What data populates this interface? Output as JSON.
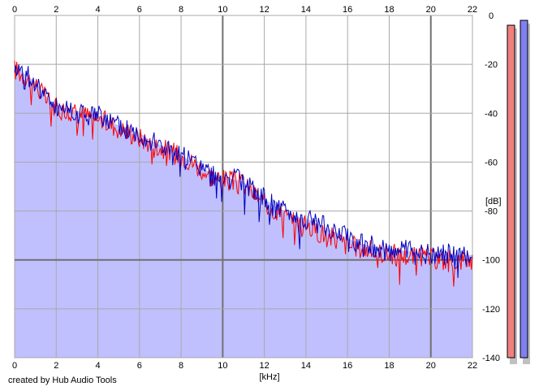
{
  "chart_data": {
    "type": "line",
    "credit": "created by Hub Audio Tools",
    "xlabel": "[kHz]",
    "ylabel": "[dB]",
    "xlim": [
      0,
      22
    ],
    "ylim": [
      -140,
      0
    ],
    "x_ticks": [
      0,
      2,
      4,
      6,
      8,
      10,
      12,
      14,
      16,
      18,
      20,
      22
    ],
    "y_ticks": [
      0,
      -20,
      -40,
      -60,
      -80,
      -100,
      -120,
      -140
    ],
    "x_tick_labels": [
      "0",
      "2",
      "4",
      "6",
      "8",
      "10",
      "12",
      "14",
      "16",
      "18",
      "20",
      "22"
    ],
    "y_tick_labels": [
      "0",
      "-20",
      "-40",
      "-60",
      "-80",
      "-100",
      "-120",
      "-140"
    ],
    "grid": true,
    "area_fill_color": "#c0c0ff",
    "series": [
      {
        "color": "#ff0000",
        "x": [
          0,
          0.5,
          1,
          1.5,
          2,
          2.5,
          3,
          3.5,
          4,
          4.5,
          5,
          5.5,
          6,
          6.5,
          7,
          7.5,
          8,
          8.5,
          9,
          9.5,
          10,
          10.5,
          11,
          11.5,
          12,
          12.5,
          13,
          13.5,
          14,
          14.5,
          15,
          15.5,
          16,
          16.5,
          17,
          17.5,
          18,
          18.5,
          19,
          19.5,
          20,
          20.5,
          21,
          21.5,
          22
        ],
        "values": [
          -22,
          -25,
          -28,
          -34,
          -38,
          -39,
          -40,
          -41,
          -42,
          -44,
          -46,
          -48,
          -50,
          -52,
          -54,
          -56,
          -57,
          -60,
          -63,
          -66,
          -67,
          -68,
          -69,
          -73,
          -77,
          -79,
          -82,
          -85,
          -86,
          -88,
          -90,
          -92,
          -94,
          -95,
          -96,
          -97,
          -97.5,
          -98,
          -98.5,
          -99,
          -99.5,
          -100,
          -100,
          -100,
          -100
        ]
      },
      {
        "color": "#0000c0",
        "x": [
          0,
          0.5,
          1,
          1.5,
          2,
          2.5,
          3,
          3.5,
          4,
          4.5,
          5,
          5.5,
          6,
          6.5,
          7,
          7.5,
          8,
          8.5,
          9,
          9.5,
          10,
          10.5,
          11,
          11.5,
          12,
          12.5,
          13,
          13.5,
          14,
          14.5,
          15,
          15.5,
          16,
          16.5,
          17,
          17.5,
          18,
          18.5,
          19,
          19.5,
          20,
          20.5,
          21,
          21.5,
          22
        ],
        "values": [
          -20,
          -24,
          -27,
          -33,
          -37,
          -38,
          -39,
          -40,
          -41,
          -43,
          -45,
          -47,
          -48,
          -51,
          -53,
          -55,
          -57,
          -60,
          -62,
          -65,
          -66,
          -67,
          -68,
          -72,
          -75,
          -78,
          -80,
          -82,
          -83,
          -85,
          -87,
          -89,
          -91,
          -93,
          -94,
          -95,
          -95.5,
          -96,
          -96.5,
          -97,
          -97.5,
          -97.5,
          -98,
          -98,
          -98
        ]
      }
    ],
    "level_meters": [
      {
        "color": "#f08080",
        "top_db": -4
      },
      {
        "color": "#8080f0",
        "top_db": -2
      }
    ]
  }
}
